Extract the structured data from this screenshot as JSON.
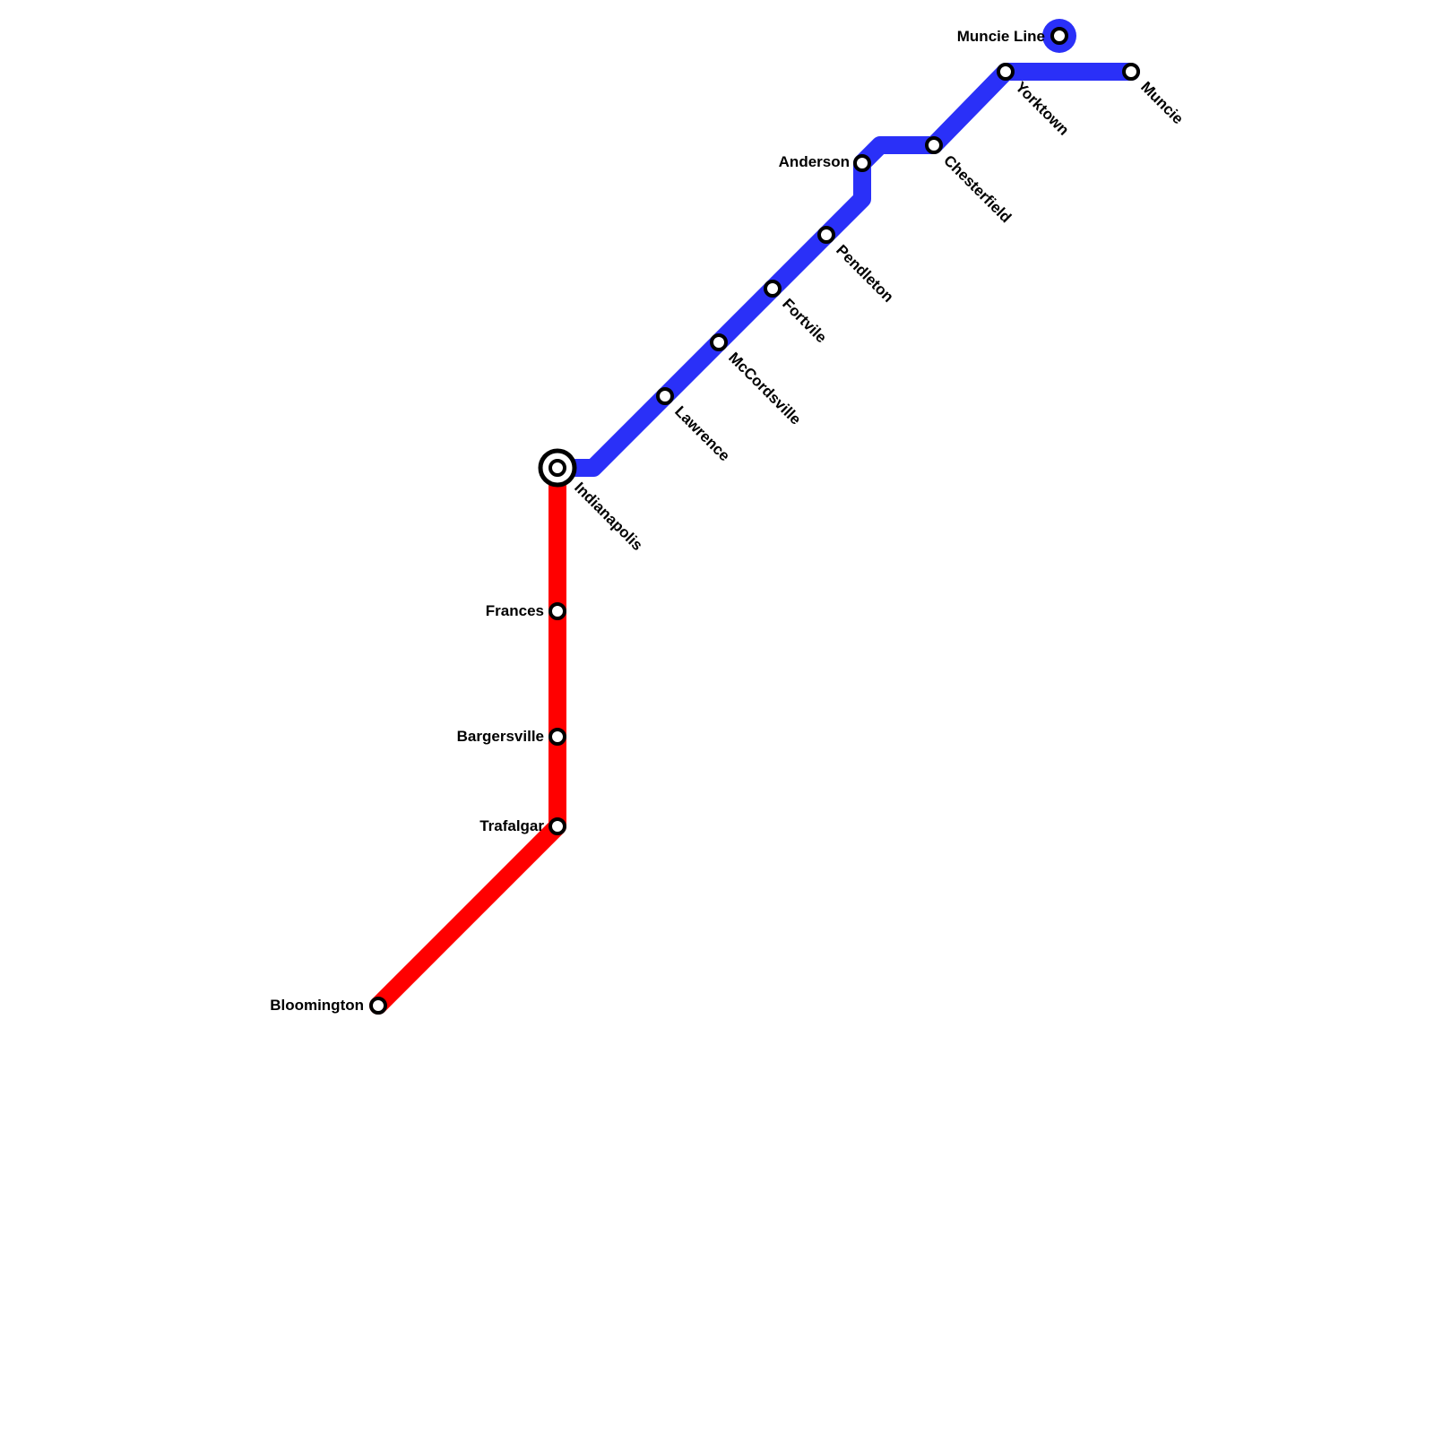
{
  "colors": {
    "blue_line": "#2a30f8",
    "red_line": "#ff0000",
    "station_fill": "#ffffff",
    "station_stroke": "#000000",
    "background": "#ffffff"
  },
  "lines": [
    {
      "id": "blue-line",
      "color": "#2a30f8"
    },
    {
      "id": "red-line",
      "color": "#ff0000"
    }
  ],
  "legend": {
    "label": "Muncie Line",
    "color": "#2a30f8"
  },
  "stations": [
    {
      "id": "indianapolis",
      "name": "Indianapolis",
      "interchange": true
    },
    {
      "id": "lawrence",
      "name": "Lawrence"
    },
    {
      "id": "mccordsville",
      "name": "McCordsville"
    },
    {
      "id": "fortvile",
      "name": "Fortvile"
    },
    {
      "id": "pendleton",
      "name": "Pendleton"
    },
    {
      "id": "anderson",
      "name": "Anderson"
    },
    {
      "id": "chesterfield",
      "name": "Chesterfield"
    },
    {
      "id": "yorktown",
      "name": "Yorktown"
    },
    {
      "id": "muncie",
      "name": "Muncie"
    },
    {
      "id": "frances",
      "name": "Frances"
    },
    {
      "id": "bargersville",
      "name": "Bargersville"
    },
    {
      "id": "trafalgar",
      "name": "Trafalgar"
    },
    {
      "id": "bloomington",
      "name": "Bloomington"
    }
  ]
}
